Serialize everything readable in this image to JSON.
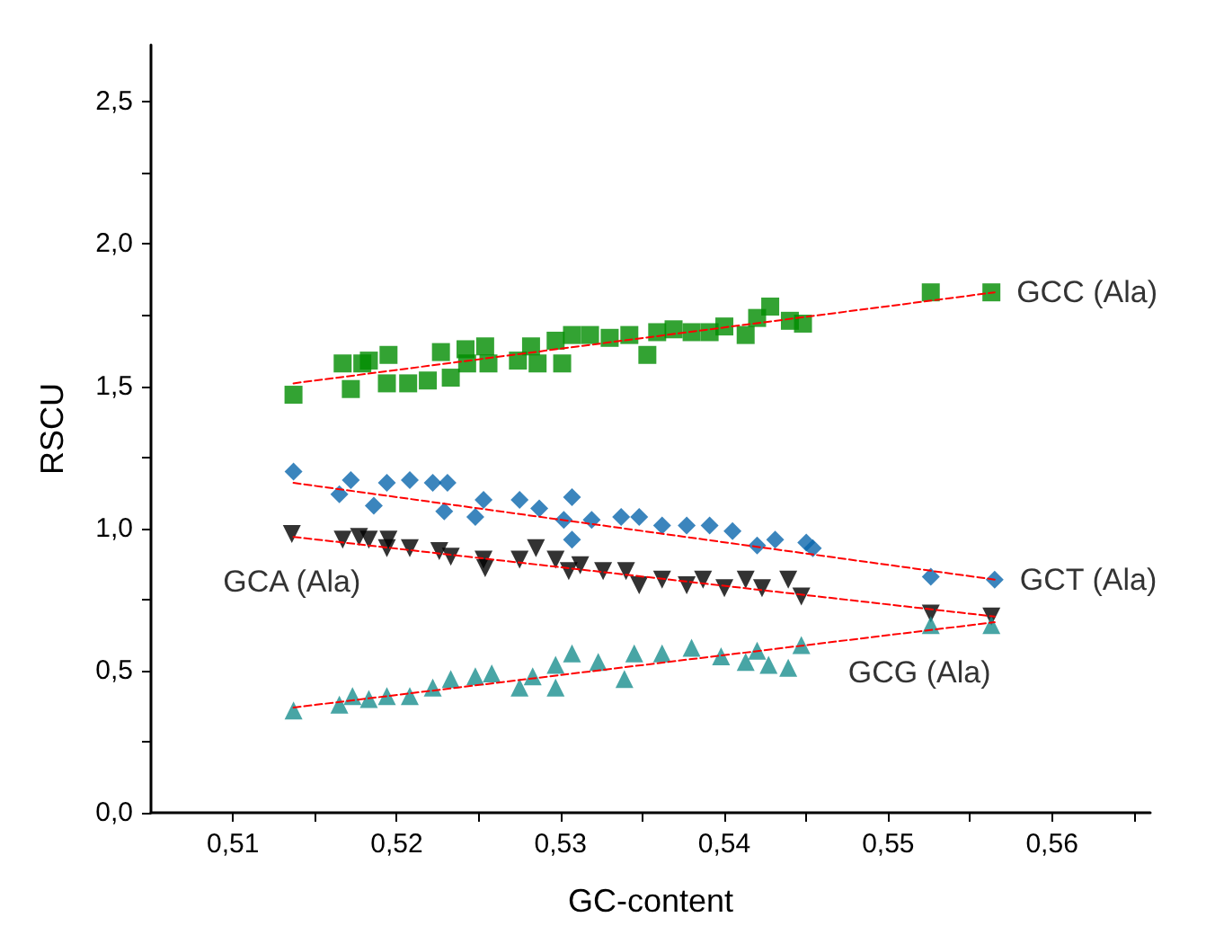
{
  "chart_data": {
    "type": "scatter",
    "xlabel": "GC-content",
    "ylabel": "RSCU",
    "xlim": [
      0.505,
      0.566
    ],
    "ylim": [
      0,
      2.7
    ],
    "xticks": [
      {
        "value": 0.51,
        "label": "0,51"
      },
      {
        "value": 0.515,
        "label": null
      },
      {
        "value": 0.52,
        "label": "0,52"
      },
      {
        "value": 0.525,
        "label": null
      },
      {
        "value": 0.53,
        "label": "0,53"
      },
      {
        "value": 0.535,
        "label": null
      },
      {
        "value": 0.54,
        "label": "0,54"
      },
      {
        "value": 0.545,
        "label": null
      },
      {
        "value": 0.55,
        "label": "0,55"
      },
      {
        "value": 0.555,
        "label": null
      },
      {
        "value": 0.56,
        "label": "0,56"
      },
      {
        "value": 0.565,
        "label": null
      }
    ],
    "yticks": [
      {
        "value": 0,
        "label": "0,0"
      },
      {
        "value": 0.25,
        "label": null
      },
      {
        "value": 0.5,
        "label": "0,5"
      },
      {
        "value": 0.75,
        "label": null
      },
      {
        "value": 1,
        "label": "1,0"
      },
      {
        "value": 1.25,
        "label": null
      },
      {
        "value": 1.5,
        "label": "1,5"
      },
      {
        "value": 1.75,
        "label": null
      },
      {
        "value": 2,
        "label": "2,0"
      },
      {
        "value": 2.25,
        "label": null
      },
      {
        "value": 2.5,
        "label": "2,5"
      }
    ],
    "grid": false,
    "legend": false,
    "series": [
      {
        "name": "GCC (Ala)",
        "color": "#008c00",
        "marker": "square",
        "x": [
          0.5137,
          0.5167,
          0.5172,
          0.5179,
          0.5183,
          0.5195,
          0.5194,
          0.5207,
          0.5219,
          0.5227,
          0.5233,
          0.5242,
          0.5243,
          0.5254,
          0.5256,
          0.5274,
          0.5282,
          0.5286,
          0.5297,
          0.5301,
          0.5307,
          0.5318,
          0.533,
          0.5342,
          0.5353,
          0.5359,
          0.5369,
          0.538,
          0.5391,
          0.54,
          0.5413,
          0.542,
          0.5428,
          0.544,
          0.5448,
          0.5526,
          0.5563
        ],
        "values": [
          1.47,
          1.58,
          1.49,
          1.58,
          1.59,
          1.61,
          1.51,
          1.51,
          1.52,
          1.62,
          1.53,
          1.63,
          1.58,
          1.64,
          1.58,
          1.59,
          1.64,
          1.58,
          1.66,
          1.58,
          1.68,
          1.68,
          1.67,
          1.68,
          1.61,
          1.69,
          1.7,
          1.69,
          1.69,
          1.71,
          1.68,
          1.74,
          1.78,
          1.73,
          1.72,
          1.83,
          1.83
        ]
      },
      {
        "name": "GCT (Ala)",
        "color": "#0a66ad",
        "marker": "diamond",
        "x": [
          0.5137,
          0.5172,
          0.5165,
          0.5194,
          0.5186,
          0.5208,
          0.5222,
          0.5231,
          0.5229,
          0.5253,
          0.5248,
          0.5275,
          0.5287,
          0.5307,
          0.5302,
          0.5307,
          0.5319,
          0.5337,
          0.5348,
          0.5362,
          0.5377,
          0.5391,
          0.5405,
          0.542,
          0.5431,
          0.545,
          0.5454,
          0.5526,
          0.5565
        ],
        "values": [
          1.2,
          1.17,
          1.12,
          1.16,
          1.08,
          1.17,
          1.16,
          1.16,
          1.06,
          1.1,
          1.04,
          1.1,
          1.07,
          1.11,
          1.03,
          0.96,
          1.03,
          1.04,
          1.04,
          1.01,
          1.01,
          1.01,
          0.99,
          0.94,
          0.96,
          0.95,
          0.93,
          0.83,
          0.82
        ]
      },
      {
        "name": "GCA (Ala)",
        "color": "#000000",
        "marker": "triangle-down",
        "x": [
          0.5136,
          0.5167,
          0.5177,
          0.5183,
          0.5194,
          0.5195,
          0.5208,
          0.5226,
          0.5233,
          0.5253,
          0.5254,
          0.5275,
          0.5285,
          0.5297,
          0.5305,
          0.5312,
          0.5326,
          0.534,
          0.5348,
          0.5362,
          0.5377,
          0.5387,
          0.54,
          0.5413,
          0.5423,
          0.5439,
          0.5447,
          0.5526,
          0.5563
        ],
        "values": [
          0.98,
          0.96,
          0.97,
          0.96,
          0.93,
          0.96,
          0.93,
          0.92,
          0.9,
          0.89,
          0.86,
          0.89,
          0.93,
          0.89,
          0.85,
          0.87,
          0.85,
          0.85,
          0.8,
          0.82,
          0.8,
          0.82,
          0.79,
          0.82,
          0.79,
          0.82,
          0.76,
          0.7,
          0.69
        ]
      },
      {
        "name": "GCG (Ala)",
        "color": "#1a8f8f",
        "marker": "triangle",
        "x": [
          0.5137,
          0.5165,
          0.5173,
          0.5183,
          0.5194,
          0.5208,
          0.5222,
          0.5233,
          0.5248,
          0.5258,
          0.5275,
          0.5283,
          0.5297,
          0.5297,
          0.5307,
          0.5323,
          0.5339,
          0.5345,
          0.5362,
          0.538,
          0.5398,
          0.5413,
          0.542,
          0.5427,
          0.5439,
          0.5447,
          0.5526,
          0.5563
        ],
        "values": [
          0.36,
          0.38,
          0.41,
          0.4,
          0.41,
          0.41,
          0.44,
          0.47,
          0.48,
          0.49,
          0.44,
          0.48,
          0.44,
          0.52,
          0.56,
          0.53,
          0.47,
          0.56,
          0.56,
          0.58,
          0.55,
          0.53,
          0.57,
          0.52,
          0.51,
          0.59,
          0.66,
          0.66
        ]
      },
      {
        "type": "line",
        "color": "#ff0000",
        "line_style": "dashed",
        "marker": "none",
        "x": [
          0.5137,
          0.5565
        ],
        "values": [
          1.51,
          1.83
        ]
      },
      {
        "type": "line",
        "color": "#ff0000",
        "line_style": "dashed",
        "marker": "none",
        "x": [
          0.5137,
          0.5565
        ],
        "values": [
          1.16,
          0.82
        ]
      },
      {
        "type": "line",
        "color": "#ff0000",
        "line_style": "dashed",
        "marker": "none",
        "x": [
          0.5137,
          0.5565
        ],
        "values": [
          0.97,
          0.69
        ]
      },
      {
        "type": "line",
        "color": "#ff0000",
        "line_style": "dashed",
        "marker": "none",
        "x": [
          0.5137,
          0.5565
        ],
        "values": [
          0.37,
          0.67
        ]
      }
    ]
  }
}
